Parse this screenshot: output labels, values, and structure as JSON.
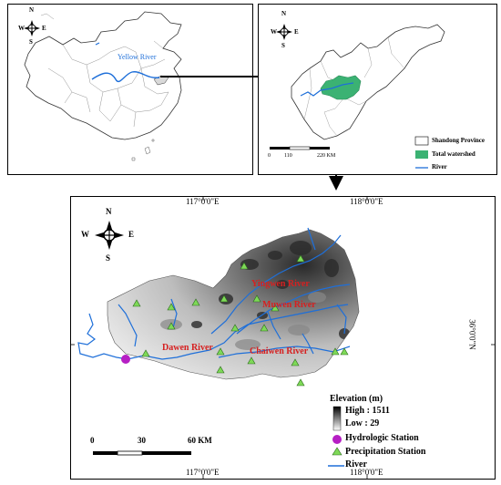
{
  "china_map": {
    "river_label": "Yellow River",
    "compass": {
      "n": "N",
      "s": "S",
      "e": "E",
      "w": "W"
    }
  },
  "shandong_map": {
    "compass": {
      "n": "N",
      "s": "S",
      "e": "E",
      "w": "W"
    },
    "scale": {
      "ticks": [
        "0",
        "110",
        "220 KM"
      ]
    },
    "legend": [
      {
        "label": "Shandong Province"
      },
      {
        "label": "Total watershed"
      },
      {
        "label": "River"
      }
    ]
  },
  "watershed_map": {
    "compass": {
      "n": "N",
      "s": "S",
      "e": "E",
      "w": "W"
    },
    "lon_labels": [
      "117°0'0\"E",
      "118°0'0\"E"
    ],
    "lat_label": "36°0'0\"N",
    "rivers": [
      "Yingwen River",
      "Muwen River",
      "Dawen River",
      "Chaiwen River"
    ],
    "scale": {
      "ticks": [
        "0",
        "30",
        "60 KM"
      ]
    },
    "legend": {
      "title": "Elevation (m)",
      "high": "High : 1511",
      "low": "Low : 29",
      "hydro": "Hydrologic Station",
      "precip": "Precipitation Station",
      "river": "River"
    },
    "colors": {
      "river": "#1e6fd9",
      "station_precip": "#7ed957",
      "station_hydro": "#b61fc4",
      "watershed": "#3bb273",
      "label": "#d62020"
    }
  }
}
